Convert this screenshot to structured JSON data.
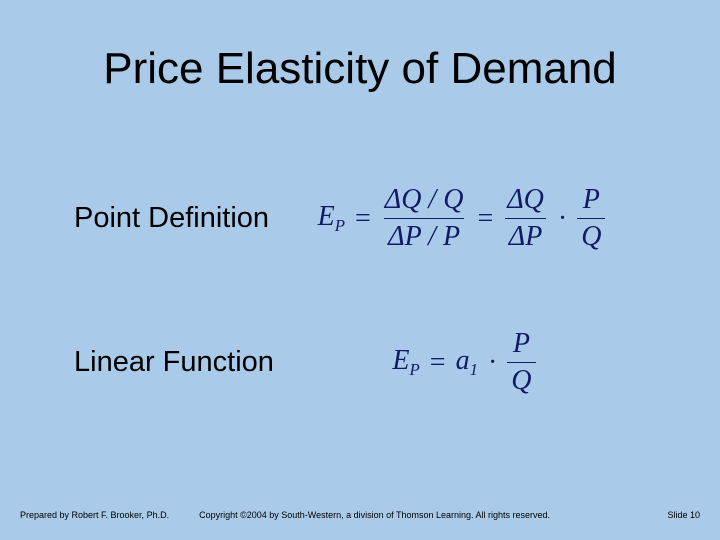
{
  "colors": {
    "background": "#a9cae8",
    "text": "#000000",
    "formula": "#111a66"
  },
  "typography": {
    "title_fontsize": 44,
    "label_fontsize": 29,
    "formula_fontsize": 28,
    "footer_fontsize": 9,
    "body_font": "Arial",
    "math_font": "Times New Roman"
  },
  "title": "Price Elasticity of Demand",
  "rows": [
    {
      "label": "Point Definition",
      "lhs_var": "E",
      "lhs_sub": "P",
      "eq": "=",
      "frac1_num": "ΔQ / Q",
      "frac1_den": "ΔP / P",
      "eq2": "=",
      "frac2_num": "ΔQ",
      "frac2_den": "ΔP",
      "dot": "·",
      "frac3_num": "P",
      "frac3_den": "Q"
    },
    {
      "label": "Linear Function",
      "lhs_var": "E",
      "lhs_sub": "P",
      "eq": "=",
      "coef_var": "a",
      "coef_sub": "1",
      "dot": "·",
      "frac_num": "P",
      "frac_den": "Q"
    }
  ],
  "footer": {
    "left": "Prepared by Robert F. Brooker, Ph.D.",
    "mid": "Copyright ©2004 by South-Western, a division of Thomson Learning. All rights reserved.",
    "right": "Slide 10"
  }
}
